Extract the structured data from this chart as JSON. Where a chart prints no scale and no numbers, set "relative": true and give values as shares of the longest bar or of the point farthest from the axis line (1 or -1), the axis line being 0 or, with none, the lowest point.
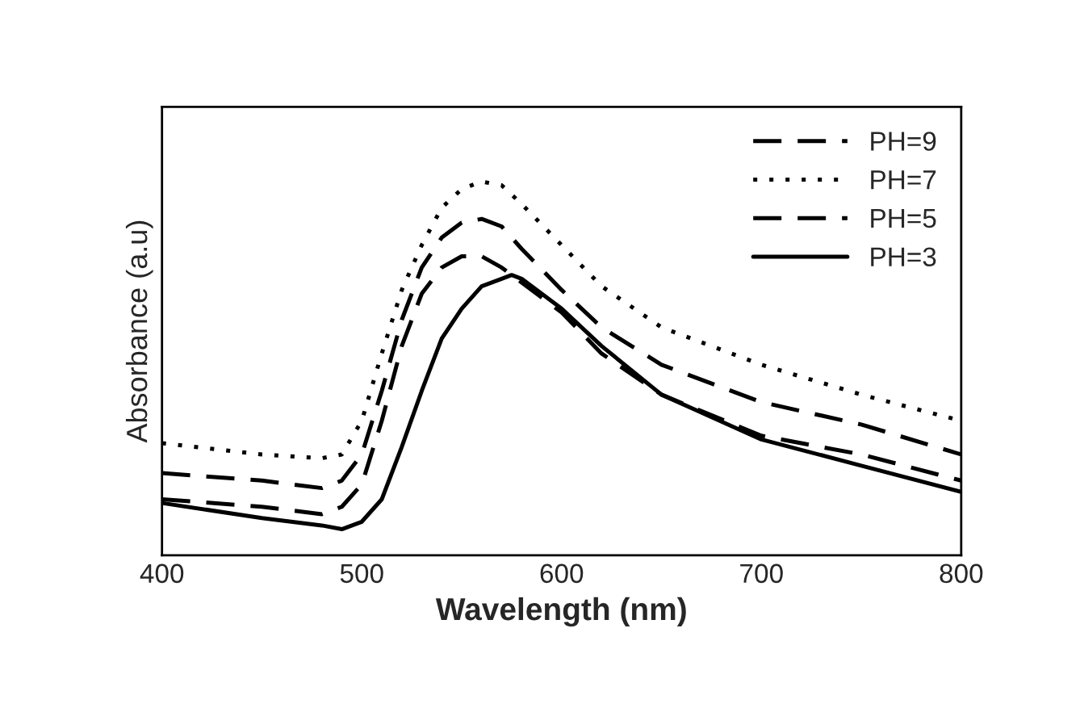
{
  "chart_data": {
    "type": "line",
    "xlabel": "Wavelength (nm)",
    "ylabel": "Absorbance (a.u)",
    "relative": true,
    "xlim": [
      400,
      800
    ],
    "xticks": [
      400,
      500,
      600,
      700,
      800
    ],
    "legend": "top right",
    "grid": false,
    "series": [
      {
        "name": "PH=9",
        "color": "#000000",
        "line_style": "dashed",
        "x": [
          400,
          450,
          480,
          490,
          500,
          510,
          520,
          530,
          540,
          550,
          560,
          570,
          580,
          600,
          620,
          650,
          700,
          750,
          800
        ],
        "values": [
          0.22,
          0.2,
          0.18,
          0.2,
          0.27,
          0.44,
          0.63,
          0.77,
          0.85,
          0.89,
          0.9,
          0.88,
          0.82,
          0.71,
          0.61,
          0.51,
          0.41,
          0.35,
          0.27
        ]
      },
      {
        "name": "PH=7",
        "color": "#000000",
        "line_style": "dotted",
        "x": [
          400,
          450,
          480,
          490,
          500,
          510,
          520,
          530,
          540,
          550,
          560,
          570,
          580,
          600,
          620,
          650,
          700,
          750,
          800
        ],
        "values": [
          0.3,
          0.27,
          0.26,
          0.27,
          0.36,
          0.54,
          0.71,
          0.83,
          0.93,
          0.98,
          1.0,
          0.99,
          0.94,
          0.83,
          0.72,
          0.61,
          0.51,
          0.43,
          0.36
        ]
      },
      {
        "name": "PH=5",
        "color": "#000000",
        "line_style": "dashed",
        "x": [
          400,
          450,
          480,
          490,
          500,
          510,
          520,
          530,
          540,
          550,
          560,
          570,
          580,
          600,
          620,
          650,
          700,
          750,
          800
        ],
        "values": [
          0.15,
          0.13,
          0.11,
          0.13,
          0.19,
          0.36,
          0.56,
          0.7,
          0.77,
          0.8,
          0.8,
          0.77,
          0.73,
          0.65,
          0.54,
          0.43,
          0.32,
          0.27,
          0.2
        ]
      },
      {
        "name": "PH=3",
        "color": "#000000",
        "line_style": "solid",
        "x": [
          400,
          450,
          480,
          490,
          500,
          510,
          520,
          530,
          540,
          550,
          560,
          570,
          575,
          580,
          600,
          620,
          650,
          700,
          750,
          800
        ],
        "values": [
          0.14,
          0.1,
          0.08,
          0.07,
          0.09,
          0.15,
          0.29,
          0.44,
          0.58,
          0.66,
          0.72,
          0.74,
          0.75,
          0.74,
          0.66,
          0.56,
          0.43,
          0.31,
          0.24,
          0.17
        ]
      }
    ]
  }
}
